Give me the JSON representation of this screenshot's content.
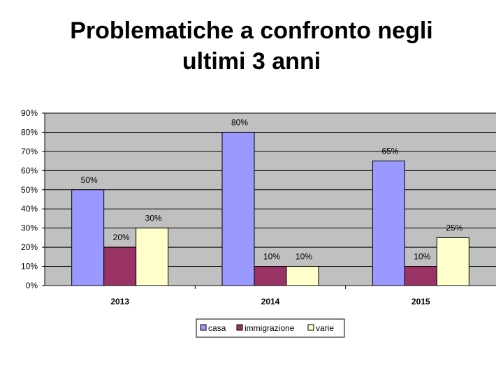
{
  "title_line1": "Problematiche a confronto negli",
  "title_line2": "ultimi 3 anni",
  "chart_data": {
    "type": "bar",
    "title": "Problematiche a confronto negli ultimi 3 anni",
    "categories": [
      "2013",
      "2014",
      "2015"
    ],
    "series": [
      {
        "name": "casa",
        "values": [
          50,
          80,
          65
        ],
        "labels": [
          "50%",
          "80%",
          "65%"
        ],
        "color": "#9999FF"
      },
      {
        "name": "immigrazione",
        "values": [
          20,
          10,
          10
        ],
        "labels": [
          "20%",
          "10%",
          "10%"
        ],
        "color": "#993366"
      },
      {
        "name": "varie",
        "values": [
          30,
          10,
          25
        ],
        "labels": [
          "30%",
          "10%",
          "25%"
        ],
        "color": "#FFFFCC"
      }
    ],
    "ylim": [
      0,
      90
    ],
    "yticks": [
      0,
      10,
      20,
      30,
      40,
      50,
      60,
      70,
      80,
      90
    ],
    "ytick_labels": [
      "0%",
      "10%",
      "20%",
      "30%",
      "40%",
      "50%",
      "60%",
      "70%",
      "80%",
      "90%"
    ],
    "plot_background": "#C0C0C0",
    "grid": true,
    "legend_position": "bottom"
  }
}
